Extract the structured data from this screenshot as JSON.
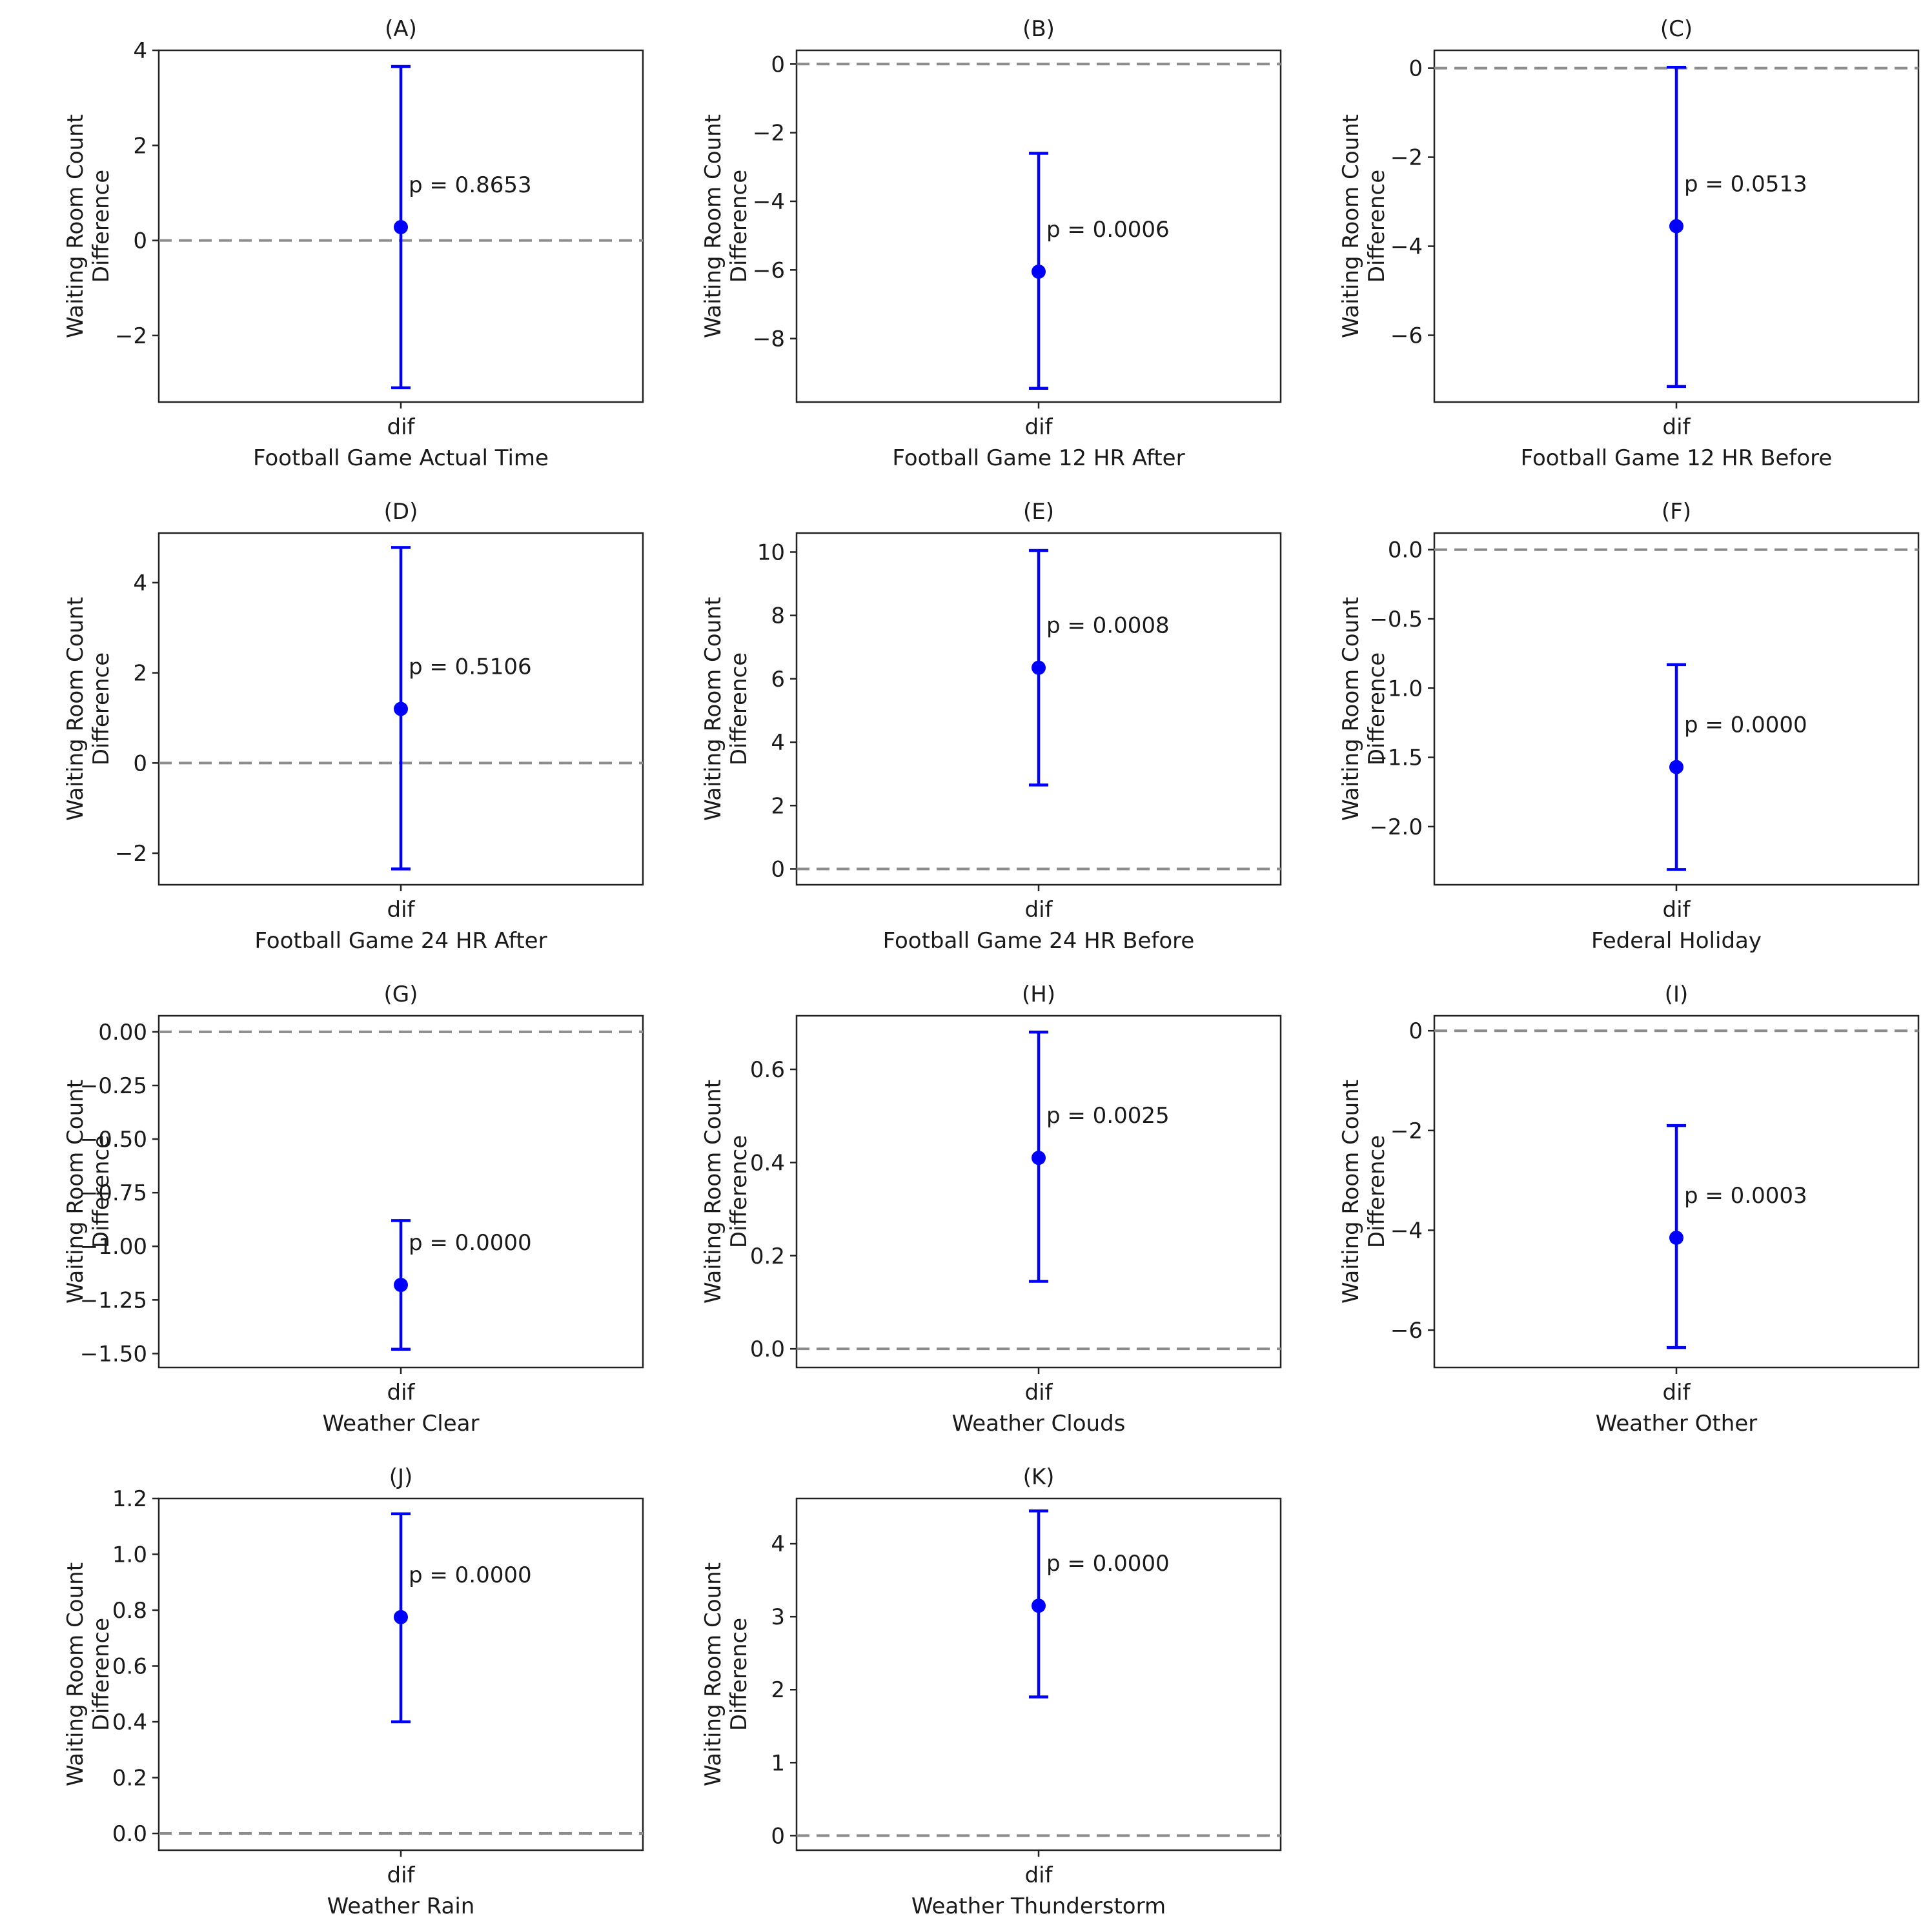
{
  "chart_data": [
    {
      "panel": "(A)",
      "type": "errorbar",
      "category": "dif",
      "xlabel": "Football Game Actual Time",
      "ylabel": [
        "Waiting Room Count",
        "Difference"
      ],
      "ylim": [
        -3.4,
        4.0
      ],
      "yticks": [
        -2,
        0,
        2,
        4
      ],
      "tick_labels": [
        "−2",
        "0",
        "2",
        "4"
      ],
      "estimate": 0.28,
      "lower": -3.1,
      "upper": 3.66,
      "reference_line": 0,
      "p_label": "p = 0.8653",
      "color": "#0000ff"
    },
    {
      "panel": "(B)",
      "type": "errorbar",
      "category": "dif",
      "xlabel": "Football Game 12 HR After",
      "ylabel": [
        "Waiting Room Count",
        "Difference"
      ],
      "ylim": [
        -9.85,
        0.4
      ],
      "yticks": [
        -8,
        -6,
        -4,
        -2,
        0
      ],
      "tick_labels": [
        "−8",
        "−6",
        "−4",
        "−2",
        "0"
      ],
      "estimate": -6.05,
      "lower": -9.45,
      "upper": -2.6,
      "reference_line": 0,
      "p_label": "p = 0.0006",
      "color": "#0000ff"
    },
    {
      "panel": "(C)",
      "type": "errorbar",
      "category": "dif",
      "xlabel": "Football Game 12 HR Before",
      "ylabel": [
        "Waiting Room Count",
        "Difference"
      ],
      "ylim": [
        -7.5,
        0.4
      ],
      "yticks": [
        -6,
        -4,
        -2,
        0
      ],
      "tick_labels": [
        "−6",
        "−4",
        "−2",
        "0"
      ],
      "estimate": -3.55,
      "lower": -7.15,
      "upper": 0.02,
      "reference_line": 0,
      "p_label": "p = 0.0513",
      "color": "#0000ff"
    },
    {
      "panel": "(D)",
      "type": "errorbar",
      "category": "dif",
      "xlabel": "Football Game 24 HR After",
      "ylabel": [
        "Waiting Room Count",
        "Difference"
      ],
      "ylim": [
        -2.7,
        5.1
      ],
      "yticks": [
        -2,
        0,
        2,
        4
      ],
      "tick_labels": [
        "−2",
        "0",
        "2",
        "4"
      ],
      "estimate": 1.2,
      "lower": -2.35,
      "upper": 4.78,
      "reference_line": 0,
      "p_label": "p = 0.5106",
      "color": "#0000ff"
    },
    {
      "panel": "(E)",
      "type": "errorbar",
      "category": "dif",
      "xlabel": "Football Game 24 HR Before",
      "ylabel": [
        "Waiting Room Count",
        "Difference"
      ],
      "ylim": [
        -0.5,
        10.6
      ],
      "yticks": [
        0,
        2,
        4,
        6,
        8,
        10
      ],
      "tick_labels": [
        "0",
        "2",
        "4",
        "6",
        "8",
        "10"
      ],
      "estimate": 6.35,
      "lower": 2.65,
      "upper": 10.05,
      "reference_line": 0,
      "p_label": "p = 0.0008",
      "color": "#0000ff"
    },
    {
      "panel": "(F)",
      "type": "errorbar",
      "category": "dif",
      "xlabel": "Federal Holiday",
      "ylabel": [
        "Waiting Room Count",
        "Difference"
      ],
      "ylim": [
        -2.42,
        0.12
      ],
      "yticks": [
        -2.0,
        -1.5,
        -1.0,
        -0.5,
        0.0
      ],
      "tick_labels": [
        "−2.0",
        "−1.5",
        "−1.0",
        "−0.5",
        "0.0"
      ],
      "estimate": -1.57,
      "lower": -2.31,
      "upper": -0.83,
      "reference_line": 0,
      "p_label": "p = 0.0000",
      "color": "#0000ff"
    },
    {
      "panel": "(G)",
      "type": "errorbar",
      "category": "dif",
      "xlabel": "Weather Clear",
      "ylabel": [
        "Waiting Room Count",
        "Difference"
      ],
      "ylim": [
        -1.565,
        0.075
      ],
      "yticks": [
        -1.5,
        -1.25,
        -1.0,
        -0.75,
        -0.5,
        -0.25,
        0.0
      ],
      "tick_labels": [
        "−1.50",
        "−1.25",
        "−1.00",
        "−0.75",
        "−0.50",
        "−0.25",
        "0.00"
      ],
      "estimate": -1.18,
      "lower": -1.48,
      "upper": -0.88,
      "reference_line": 0,
      "p_label": "p = 0.0000",
      "color": "#0000ff"
    },
    {
      "panel": "(H)",
      "type": "errorbar",
      "category": "dif",
      "xlabel": "Weather Clouds",
      "ylabel": [
        "Waiting Room Count",
        "Difference"
      ],
      "ylim": [
        -0.04,
        0.715
      ],
      "yticks": [
        0.0,
        0.2,
        0.4,
        0.6
      ],
      "tick_labels": [
        "0.0",
        "0.2",
        "0.4",
        "0.6"
      ],
      "estimate": 0.41,
      "lower": 0.145,
      "upper": 0.68,
      "reference_line": 0,
      "p_label": "p = 0.0025",
      "color": "#0000ff"
    },
    {
      "panel": "(I)",
      "type": "errorbar",
      "category": "dif",
      "xlabel": "Weather Other",
      "ylabel": [
        "Waiting Room Count",
        "Difference"
      ],
      "ylim": [
        -6.75,
        0.3
      ],
      "yticks": [
        -6,
        -4,
        -2,
        0
      ],
      "tick_labels": [
        "−6",
        "−4",
        "−2",
        "0"
      ],
      "estimate": -4.15,
      "lower": -6.35,
      "upper": -1.9,
      "reference_line": 0,
      "p_label": "p = 0.0003",
      "color": "#0000ff"
    },
    {
      "panel": "(J)",
      "type": "errorbar",
      "category": "dif",
      "xlabel": "Weather Rain",
      "ylabel": [
        "Waiting Room Count",
        "Difference"
      ],
      "ylim": [
        -0.06,
        1.2
      ],
      "yticks": [
        0.0,
        0.2,
        0.4,
        0.6,
        0.8,
        1.0,
        1.2
      ],
      "tick_labels": [
        "0.0",
        "0.2",
        "0.4",
        "0.6",
        "0.8",
        "1.0",
        "1.2"
      ],
      "estimate": 0.775,
      "lower": 0.4,
      "upper": 1.145,
      "reference_line": 0,
      "p_label": "p = 0.0000",
      "color": "#0000ff"
    },
    {
      "panel": "(K)",
      "type": "errorbar",
      "category": "dif",
      "xlabel": "Weather Thunderstorm",
      "ylabel": [
        "Waiting Room Count",
        "Difference"
      ],
      "ylim": [
        -0.2,
        4.62
      ],
      "yticks": [
        0,
        1,
        2,
        3,
        4
      ],
      "tick_labels": [
        "0",
        "1",
        "2",
        "3",
        "4"
      ],
      "estimate": 3.15,
      "lower": 1.9,
      "upper": 4.45,
      "reference_line": 0,
      "p_label": "p = 0.0000",
      "color": "#0000ff"
    }
  ]
}
